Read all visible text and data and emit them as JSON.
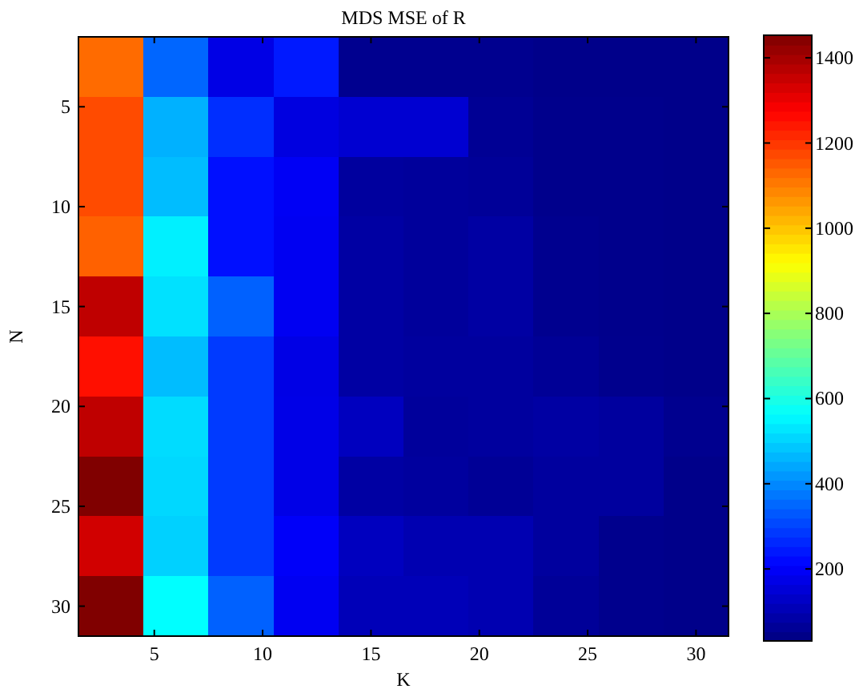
{
  "chart_data": {
    "type": "heatmap",
    "title": "MDS MSE of R",
    "xlabel": "K",
    "ylabel": "N",
    "x": [
      3,
      6,
      9,
      12,
      15,
      18,
      21,
      24,
      27,
      30
    ],
    "y": [
      3,
      6,
      9,
      12,
      15,
      18,
      21,
      24,
      27,
      30
    ],
    "xlim": [
      1.5,
      31.5
    ],
    "xticks": [
      5,
      10,
      15,
      20,
      25,
      30
    ],
    "ylim": [
      31.5,
      1.5
    ],
    "yticks": [
      5,
      10,
      15,
      20,
      25,
      30
    ],
    "cells": [
      [
        1126,
        351,
        173,
        244,
        52,
        52,
        52,
        45,
        45,
        45
      ],
      [
        1170,
        456,
        273,
        166,
        145,
        145,
        60,
        48,
        48,
        45
      ],
      [
        1170,
        472,
        230,
        195,
        74,
        70,
        65,
        48,
        48,
        45
      ],
      [
        1140,
        543,
        230,
        190,
        80,
        70,
        80,
        52,
        48,
        45
      ],
      [
        1365,
        522,
        344,
        190,
        80,
        70,
        80,
        52,
        48,
        45
      ],
      [
        1254,
        472,
        290,
        173,
        80,
        74,
        74,
        62,
        50,
        45
      ],
      [
        1365,
        515,
        290,
        175,
        120,
        70,
        74,
        80,
        74,
        52
      ],
      [
        1453,
        510,
        290,
        175,
        80,
        74,
        62,
        74,
        74,
        45
      ],
      [
        1340,
        500,
        290,
        200,
        120,
        100,
        100,
        74,
        50,
        45
      ],
      [
        1453,
        564,
        344,
        190,
        110,
        110,
        100,
        65,
        50,
        45
      ]
    ],
    "clim": [
      31,
      1453
    ],
    "cticks": [
      200,
      400,
      600,
      800,
      1000,
      1200,
      1400
    ]
  }
}
